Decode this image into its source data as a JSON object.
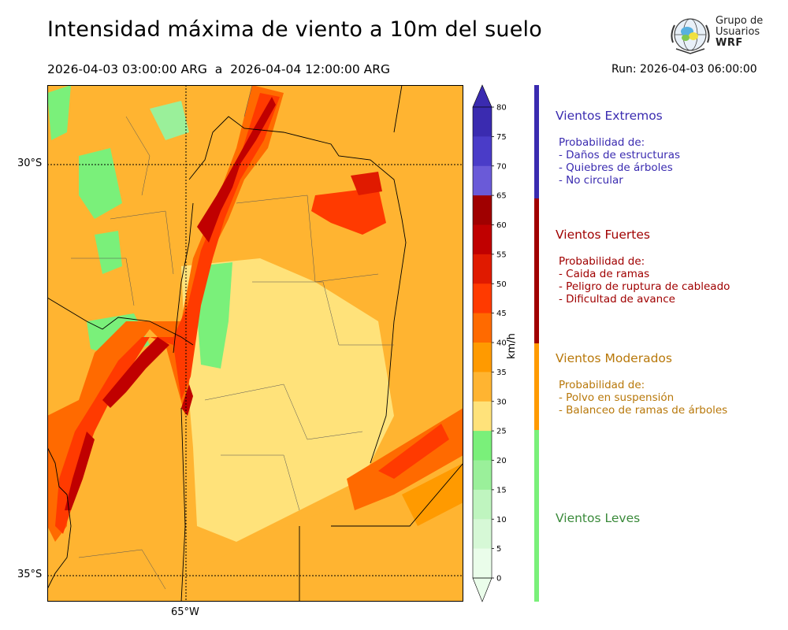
{
  "header": {
    "title": "Intensidad máxima de viento a 10m del suelo",
    "period": "2026-04-03 03:00:00 ARG  a  2026-04-04 12:00:00 ARG",
    "run": "Run: 2026-04-03 06:00:00"
  },
  "logo": {
    "line1": "Grupo de",
    "line2": "Usuarios",
    "line3": "WRF"
  },
  "map_axes": {
    "lat_labels": [
      "30°S",
      "35°S"
    ],
    "lon_labels": [
      "65°W"
    ]
  },
  "colorbar": {
    "unit": "km/h",
    "ticks": [
      "80",
      "75",
      "70",
      "65",
      "60",
      "55",
      "50",
      "45",
      "40",
      "35",
      "30",
      "25",
      "20",
      "15",
      "10",
      "5",
      "0"
    ],
    "colors": [
      "#3a2bb0",
      "#4a3cc8",
      "#6a5ad8",
      "#a00000",
      "#c00000",
      "#e01a00",
      "#ff3a00",
      "#ff6a00",
      "#ff9a00",
      "#ffb431",
      "#ffe27a",
      "#7af07a",
      "#9af09a",
      "#bff5bf",
      "#d6f8d6",
      "#eafdea"
    ]
  },
  "categories": [
    {
      "name": "Vientos Extremos",
      "color": "#3a2bb0",
      "heading": "Probabilidad de:",
      "items": [
        "- Daños de estructuras",
        "- Quiebres de árboles",
        "- No circular"
      ]
    },
    {
      "name": "Vientos Fuertes",
      "color": "#a00000",
      "heading": "Probabilidad de:",
      "items": [
        "- Caida de ramas",
        "- Peligro de ruptura de cableado",
        "- Dificultad de avance"
      ]
    },
    {
      "name": "Vientos Moderados",
      "color": "#b8780a",
      "heading": "Probabilidad de:",
      "items": [
        "- Polvo en suspensión",
        "- Balanceo de ramas de árboles"
      ]
    },
    {
      "name": "Vientos Leves",
      "color": "#3a8a3a",
      "heading": "",
      "items": []
    }
  ],
  "legend_bar_colors": [
    "#3a2bb0",
    "#a00000",
    "#ff9a00",
    "#7af07a"
  ]
}
